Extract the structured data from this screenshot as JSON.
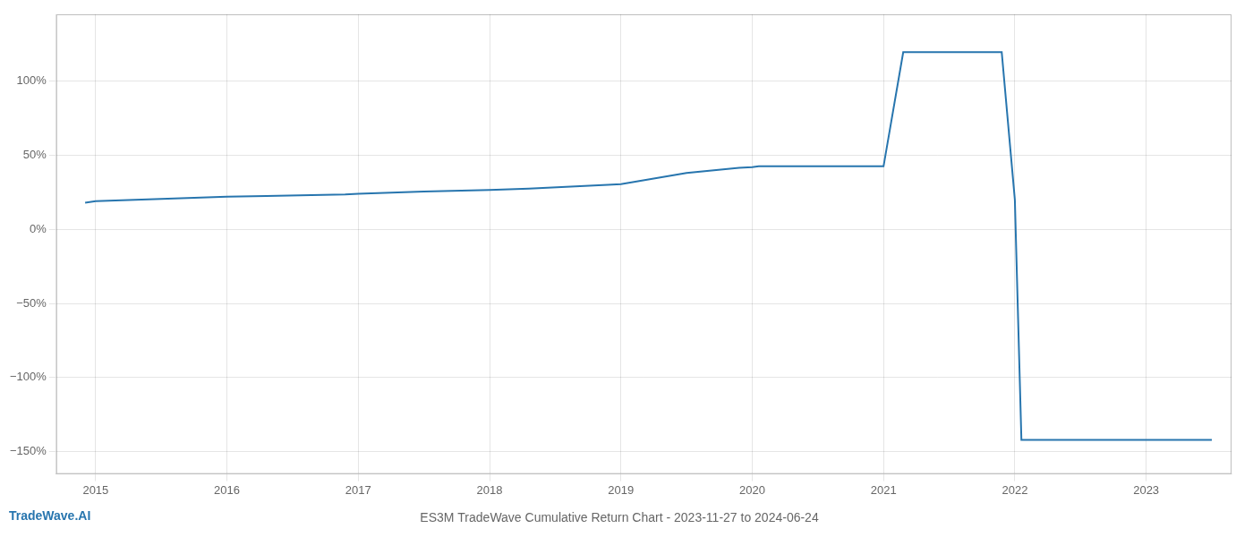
{
  "chart_data": {
    "type": "line",
    "title": "ES3M TradeWave Cumulative Return Chart - 2023-11-27 to 2024-06-24",
    "annotations": [
      "TradeWave.AI"
    ],
    "color": "#2775ae",
    "x": [
      2014.92,
      2015.0,
      2015.5,
      2016.0,
      2016.3,
      2016.9,
      2017.0,
      2017.5,
      2018.0,
      2018.3,
      2018.9,
      2019.0,
      2019.5,
      2019.9,
      2020.0,
      2020.05,
      2020.5,
      2021.0,
      2021.15,
      2021.9,
      2022.0,
      2022.05,
      2022.5,
      2023.0,
      2023.5
    ],
    "values": [
      0.18,
      0.19,
      0.205,
      0.22,
      0.225,
      0.235,
      0.24,
      0.255,
      0.265,
      0.275,
      0.3,
      0.305,
      0.38,
      0.415,
      0.42,
      0.425,
      0.425,
      0.425,
      1.195,
      1.195,
      0.2,
      -1.42,
      -1.42,
      -1.42,
      -1.42
    ],
    "xlim": [
      2014.7,
      2023.65
    ],
    "xticks": [
      2015,
      2016,
      2017,
      2018,
      2019,
      2020,
      2021,
      2022,
      2023
    ],
    "ylim": [
      -1.65,
      1.45
    ],
    "yticks": [
      {
        "value": -1.5,
        "label": "−150%"
      },
      {
        "value": -1.0,
        "label": "−100%"
      },
      {
        "value": -0.5,
        "label": "−50%"
      },
      {
        "value": 0.0,
        "label": "0%"
      },
      {
        "value": 0.5,
        "label": "50%"
      },
      {
        "value": 1.0,
        "label": "100%"
      }
    ],
    "grid": true
  }
}
